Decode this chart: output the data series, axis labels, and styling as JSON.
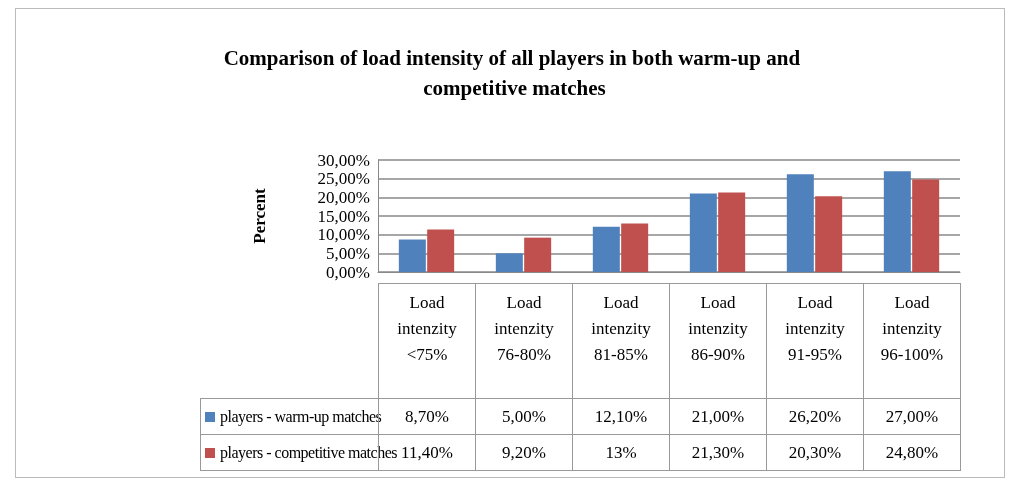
{
  "chart_data": {
    "type": "bar",
    "title": "Comparison of load intensity of all players in both warm-up and competitive matches",
    "ylabel": "Percent",
    "categories": [
      "Load intenzity <75%",
      "Load intenzity 76-80%",
      "Load intenzity 81-85%",
      "Load intenzity 86-90%",
      "Load intenzity 91-95%",
      "Load intenzity 96-100%"
    ],
    "series": [
      {
        "name": "players - warm-up matches",
        "color": "#4f81bd",
        "values": [
          8.7,
          5.0,
          12.1,
          21.0,
          26.2,
          27.0
        ],
        "value_labels": [
          "8,70%",
          "5,00%",
          "12,10%",
          "21,00%",
          "26,20%",
          "27,00%"
        ]
      },
      {
        "name": "players - competitive matches",
        "color": "#c0504d",
        "values": [
          11.4,
          9.2,
          13,
          21.3,
          20.3,
          24.8
        ],
        "value_labels": [
          "11,40%",
          "9,20%",
          "13%",
          "21,30%",
          "20,30%",
          "24,80%"
        ]
      }
    ],
    "ylim": [
      0,
      30
    ],
    "yticks": [
      {
        "value": 0,
        "label": "0,00%"
      },
      {
        "value": 5,
        "label": "5,00%"
      },
      {
        "value": 10,
        "label": "10,00%"
      },
      {
        "value": 15,
        "label": "15,00%"
      },
      {
        "value": 20,
        "label": "20,00%"
      },
      {
        "value": 25,
        "label": "25,00%"
      },
      {
        "value": 30,
        "label": "30,00%"
      }
    ],
    "grid": true,
    "legend": "bottom"
  }
}
